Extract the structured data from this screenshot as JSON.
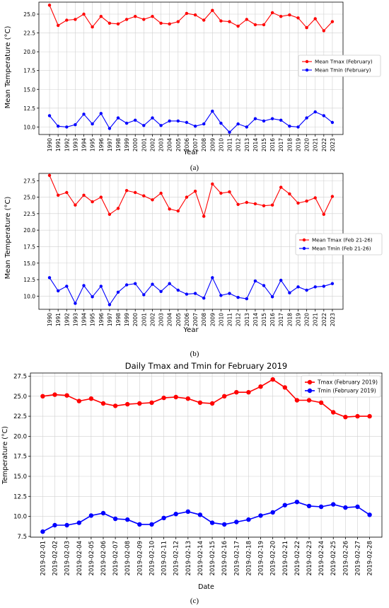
{
  "charts": [
    {
      "caption": "(a)",
      "chart_data": {
        "type": "line",
        "title": "",
        "xlabel": "Year",
        "ylabel": "Mean Temperature (°C)",
        "categories": [
          "1990",
          "1991",
          "1992",
          "1993",
          "1994",
          "1995",
          "1996",
          "1997",
          "1998",
          "1999",
          "2000",
          "2001",
          "2002",
          "2003",
          "2004",
          "2005",
          "2006",
          "2007",
          "2008",
          "2009",
          "2010",
          "2011",
          "2012",
          "2013",
          "2014",
          "2015",
          "2016",
          "2017",
          "2018",
          "2019",
          "2020",
          "2021",
          "2022",
          "2023"
        ],
        "yticks": [
          "10.0",
          "12.5",
          "15.0",
          "17.5",
          "20.0",
          "22.5",
          "25.0"
        ],
        "ylim": [
          9.0,
          26.6
        ],
        "grid": true,
        "legend_position": "center-right",
        "series": [
          {
            "name": "Mean Tmax (February)",
            "color": "#ff0000",
            "values": [
              26.2,
              23.5,
              24.2,
              24.3,
              25.0,
              23.3,
              24.7,
              23.8,
              23.7,
              24.3,
              24.7,
              24.3,
              24.7,
              23.8,
              23.7,
              24.0,
              25.1,
              24.9,
              24.2,
              25.5,
              24.1,
              24.0,
              23.4,
              24.3,
              23.6,
              23.6,
              25.2,
              24.7,
              24.9,
              24.5,
              23.2,
              24.4,
              22.8,
              24.0
            ]
          },
          {
            "name": "Mean Tmin (February)",
            "color": "#0000ff",
            "values": [
              11.5,
              10.1,
              10.0,
              10.3,
              11.7,
              10.4,
              11.8,
              9.8,
              11.2,
              10.5,
              10.9,
              10.2,
              11.2,
              10.2,
              10.8,
              10.8,
              10.6,
              10.1,
              10.4,
              12.1,
              10.5,
              9.3,
              10.4,
              10.0,
              11.1,
              10.8,
              11.1,
              10.9,
              10.1,
              10.0,
              11.2,
              12.0,
              11.5,
              10.6
            ]
          }
        ]
      }
    },
    {
      "caption": "(b)",
      "chart_data": {
        "type": "line",
        "title": "",
        "xlabel": "Year",
        "ylabel": "Mean Temperature (°C)",
        "categories": [
          "1990",
          "1991",
          "1992",
          "1993",
          "1994",
          "1995",
          "1996",
          "1997",
          "1998",
          "1999",
          "2000",
          "2001",
          "2002",
          "2003",
          "2004",
          "2005",
          "2006",
          "2007",
          "2008",
          "2009",
          "2010",
          "2011",
          "2012",
          "2013",
          "2014",
          "2015",
          "2016",
          "2017",
          "2018",
          "2019",
          "2020",
          "2021",
          "2022",
          "2023"
        ],
        "yticks": [
          "10.0",
          "12.5",
          "15.0",
          "17.5",
          "20.0",
          "22.5",
          "25.0",
          "27.5"
        ],
        "ylim": [
          8.0,
          28.6
        ],
        "grid": true,
        "legend_position": "center-right",
        "series": [
          {
            "name": "Mean Tmax (Feb 21-26)",
            "color": "#ff0000",
            "values": [
              28.3,
              25.3,
              25.7,
              23.8,
              25.3,
              24.3,
              25.0,
              22.4,
              23.3,
              26.0,
              25.7,
              25.2,
              24.6,
              25.6,
              23.2,
              22.9,
              25.0,
              25.9,
              22.1,
              27.0,
              25.6,
              25.8,
              23.9,
              24.2,
              24.0,
              23.7,
              23.8,
              26.5,
              25.5,
              24.1,
              24.4,
              24.9,
              22.4,
              25.1
            ]
          },
          {
            "name": "Mean Tmin (Feb 21-26)",
            "color": "#0000ff",
            "values": [
              12.8,
              10.8,
              11.5,
              8.9,
              11.6,
              9.9,
              11.5,
              8.7,
              10.6,
              11.7,
              11.9,
              10.2,
              11.8,
              10.7,
              11.9,
              10.9,
              10.3,
              10.4,
              9.7,
              12.8,
              10.1,
              10.4,
              9.8,
              9.6,
              12.3,
              11.6,
              9.9,
              12.4,
              10.5,
              11.4,
              10.9,
              11.4,
              11.5,
              11.9
            ]
          }
        ]
      }
    },
    {
      "caption": "(c)",
      "chart_data": {
        "type": "line",
        "title": "Daily Tmax and Tmin for February 2019",
        "xlabel": "Date",
        "ylabel": "Temperature (°C)",
        "categories": [
          "2019-02-01",
          "2019-02-02",
          "2019-02-03",
          "2019-02-04",
          "2019-02-05",
          "2019-02-06",
          "2019-02-07",
          "2019-02-08",
          "2019-02-09",
          "2019-02-10",
          "2019-02-11",
          "2019-02-12",
          "2019-02-13",
          "2019-02-14",
          "2019-02-15",
          "2019-02-16",
          "2019-02-17",
          "2019-02-18",
          "2019-02-19",
          "2019-02-20",
          "2019-02-21",
          "2019-02-22",
          "2019-02-23",
          "2019-02-24",
          "2019-02-25",
          "2019-02-26",
          "2019-02-27",
          "2019-02-28"
        ],
        "yticks": [
          "7.5",
          "10.0",
          "12.5",
          "15.0",
          "17.5",
          "20.0",
          "22.5",
          "25.0",
          "27.5"
        ],
        "ylim": [
          7.4,
          27.9
        ],
        "grid": true,
        "legend_position": "top-right",
        "series": [
          {
            "name": "Tmax (February 2019)",
            "color": "#ff0000",
            "values": [
              25.0,
              25.2,
              25.1,
              24.4,
              24.7,
              24.1,
              23.8,
              24.0,
              24.1,
              24.2,
              24.8,
              24.9,
              24.7,
              24.2,
              24.1,
              25.0,
              25.5,
              25.5,
              26.2,
              27.1,
              26.1,
              24.5,
              24.5,
              24.2,
              23.0,
              22.4,
              22.5,
              22.5
            ]
          },
          {
            "name": "Tmin (February 2019)",
            "color": "#0000ff",
            "values": [
              8.1,
              8.9,
              8.9,
              9.2,
              10.1,
              10.4,
              9.7,
              9.6,
              9.0,
              9.0,
              9.8,
              10.3,
              10.6,
              10.2,
              9.2,
              9.0,
              9.3,
              9.6,
              10.1,
              10.5,
              11.4,
              11.8,
              11.3,
              11.2,
              11.5,
              11.1,
              11.2,
              10.2
            ]
          }
        ]
      }
    }
  ]
}
